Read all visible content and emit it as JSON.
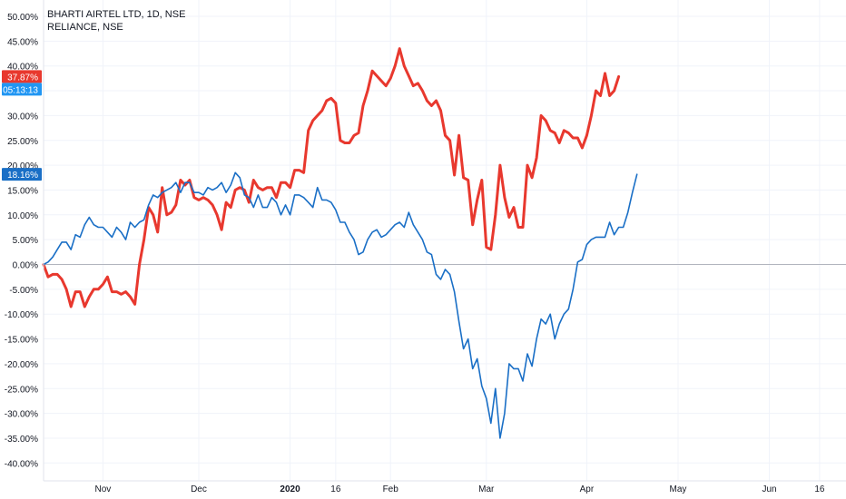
{
  "legend": {
    "line1": "BHARTI AIRTEL LTD, 1D, NSE",
    "line2": "RELIANCE, NSE"
  },
  "badges": {
    "bharti_value": "37.87%",
    "countdown": "05:13:13",
    "reliance_value": "18.16%"
  },
  "colors": {
    "bharti": "#e8382e",
    "reliance": "#1a6fc6",
    "badge_red": "#e8382e",
    "badge_blue": "#2196f3",
    "badge_dark_blue": "#1a6fc6",
    "grid": "#f0f3fa",
    "zero_line": "#b2b5be",
    "axis_text": "#131722"
  },
  "chart_data": {
    "type": "line",
    "title": "BHARTI AIRTEL LTD, 1D, NSE",
    "y_unit": "%",
    "ylim": [
      -42,
      52
    ],
    "y_ticks": [
      50,
      45,
      40,
      35,
      30,
      25,
      20,
      15,
      10,
      5,
      0,
      -5,
      -10,
      -15,
      -20,
      -25,
      -30,
      -35,
      -40
    ],
    "y_tick_labels": [
      "50.00%",
      "45.00%",
      "40.00%",
      "35.00%",
      "30.00%",
      "25.00%",
      "20.00%",
      "15.00%",
      "10.00%",
      "5.00%",
      "0.00%",
      "-5.00%",
      "-10.00%",
      "-15.00%",
      "-20.00%",
      "-25.00%",
      "-30.00%",
      "-35.00%",
      "-40.00%"
    ],
    "x_tick_labels": [
      "Nov",
      "Dec",
      "2020",
      "16",
      "Feb",
      "Mar",
      "Apr",
      "May",
      "Jun",
      "16"
    ],
    "x_tick_bold": [
      false,
      false,
      true,
      false,
      false,
      false,
      false,
      false,
      false,
      false
    ],
    "x_tick_index": [
      13,
      34,
      54,
      64,
      76,
      97,
      119,
      139,
      159,
      170
    ],
    "x_index_max": 174,
    "grid": true,
    "series": [
      {
        "name": "BHARTI AIRTEL LTD, 1D, NSE",
        "line_width": 3,
        "points": [
          [
            0,
            0
          ],
          [
            1,
            -2.5
          ],
          [
            2,
            -2.0
          ],
          [
            3,
            -2.0
          ],
          [
            4,
            -3.0
          ],
          [
            5,
            -5.0
          ],
          [
            6,
            -8.5
          ],
          [
            7,
            -5.5
          ],
          [
            8,
            -5.5
          ],
          [
            9,
            -8.5
          ],
          [
            10,
            -6.5
          ],
          [
            11,
            -5.0
          ],
          [
            12,
            -5.0
          ],
          [
            13,
            -4.0
          ],
          [
            14,
            -2.5
          ],
          [
            15,
            -5.5
          ],
          [
            16,
            -5.5
          ],
          [
            17,
            -6.0
          ],
          [
            18,
            -5.5
          ],
          [
            19,
            -6.5
          ],
          [
            20,
            -8.0
          ],
          [
            21,
            0
          ],
          [
            22,
            5.0
          ],
          [
            23,
            11.5
          ],
          [
            24,
            10.0
          ],
          [
            25,
            6.5
          ],
          [
            26,
            15.5
          ],
          [
            27,
            10.0
          ],
          [
            28,
            10.5
          ],
          [
            29,
            12.0
          ],
          [
            30,
            17.0
          ],
          [
            31,
            16.0
          ],
          [
            32,
            17.0
          ],
          [
            33,
            13.5
          ],
          [
            34,
            13.0
          ],
          [
            35,
            13.5
          ],
          [
            36,
            13.0
          ],
          [
            37,
            12.0
          ],
          [
            38,
            10.0
          ],
          [
            39,
            7.0
          ],
          [
            40,
            12.5
          ],
          [
            41,
            11.5
          ],
          [
            42,
            15.0
          ],
          [
            43,
            15.5
          ],
          [
            44,
            15.0
          ],
          [
            45,
            12.5
          ],
          [
            46,
            17.0
          ],
          [
            47,
            15.5
          ],
          [
            48,
            15.0
          ],
          [
            49,
            15.5
          ],
          [
            50,
            15.5
          ],
          [
            51,
            13.5
          ],
          [
            52,
            16.5
          ],
          [
            53,
            16.5
          ],
          [
            54,
            15.5
          ],
          [
            55,
            19.0
          ],
          [
            56,
            19.0
          ],
          [
            57,
            18.5
          ],
          [
            58,
            27.0
          ],
          [
            59,
            29.0
          ],
          [
            60,
            30.0
          ],
          [
            61,
            31.0
          ],
          [
            62,
            33.0
          ],
          [
            63,
            33.5
          ],
          [
            64,
            32.5
          ],
          [
            65,
            25.0
          ],
          [
            66,
            24.5
          ],
          [
            67,
            24.5
          ],
          [
            68,
            26.0
          ],
          [
            69,
            26.5
          ],
          [
            70,
            32.0
          ],
          [
            71,
            35.0
          ],
          [
            72,
            39.0
          ],
          [
            73,
            38.0
          ],
          [
            74,
            37.0
          ],
          [
            75,
            36.0
          ],
          [
            76,
            37.5
          ],
          [
            77,
            40.0
          ],
          [
            78,
            43.5
          ],
          [
            79,
            40.0
          ],
          [
            80,
            38.0
          ],
          [
            81,
            36.0
          ],
          [
            82,
            36.5
          ],
          [
            83,
            35.0
          ],
          [
            84,
            33.0
          ],
          [
            85,
            32.0
          ],
          [
            86,
            33.0
          ],
          [
            87,
            31.0
          ],
          [
            88,
            26.0
          ],
          [
            89,
            25.0
          ],
          [
            90,
            18.0
          ],
          [
            91,
            26.0
          ],
          [
            92,
            17.5
          ],
          [
            93,
            17.0
          ],
          [
            94,
            8.0
          ],
          [
            95,
            13.0
          ],
          [
            96,
            17.0
          ],
          [
            97,
            3.5
          ],
          [
            98,
            3.0
          ],
          [
            99,
            10.0
          ],
          [
            100,
            20.0
          ],
          [
            101,
            13.5
          ],
          [
            102,
            9.5
          ],
          [
            103,
            11.5
          ],
          [
            104,
            7.5
          ],
          [
            105,
            7.5
          ],
          [
            106,
            20.0
          ],
          [
            107,
            17.5
          ],
          [
            108,
            21.5
          ],
          [
            109,
            30.0
          ],
          [
            110,
            29.0
          ],
          [
            111,
            27.0
          ],
          [
            112,
            26.5
          ],
          [
            113,
            24.5
          ],
          [
            114,
            27.0
          ],
          [
            115,
            26.5
          ],
          [
            116,
            25.5
          ],
          [
            117,
            25.5
          ],
          [
            118,
            23.5
          ],
          [
            119,
            26.0
          ],
          [
            120,
            30.0
          ],
          [
            121,
            35.0
          ],
          [
            122,
            34.0
          ],
          [
            123,
            38.5
          ],
          [
            124,
            34.0
          ],
          [
            125,
            35.0
          ],
          [
            126,
            37.87
          ]
        ]
      },
      {
        "name": "RELIANCE, NSE",
        "line_width": 1.6,
        "points": [
          [
            0,
            0
          ],
          [
            1,
            0.5
          ],
          [
            2,
            1.5
          ],
          [
            3,
            3.0
          ],
          [
            4,
            4.5
          ],
          [
            5,
            4.5
          ],
          [
            6,
            3.0
          ],
          [
            7,
            6.0
          ],
          [
            8,
            5.5
          ],
          [
            9,
            8.0
          ],
          [
            10,
            9.5
          ],
          [
            11,
            8.0
          ],
          [
            12,
            7.5
          ],
          [
            13,
            7.5
          ],
          [
            14,
            6.5
          ],
          [
            15,
            5.5
          ],
          [
            16,
            7.5
          ],
          [
            17,
            6.5
          ],
          [
            18,
            5.0
          ],
          [
            19,
            8.5
          ],
          [
            20,
            7.5
          ],
          [
            21,
            8.5
          ],
          [
            22,
            9.0
          ],
          [
            23,
            12.0
          ],
          [
            24,
            14.0
          ],
          [
            25,
            13.5
          ],
          [
            26,
            14.5
          ],
          [
            27,
            15.0
          ],
          [
            28,
            15.5
          ],
          [
            29,
            16.5
          ],
          [
            30,
            14.5
          ],
          [
            31,
            16.5
          ],
          [
            32,
            16.5
          ],
          [
            33,
            14.5
          ],
          [
            34,
            14.5
          ],
          [
            35,
            14.0
          ],
          [
            36,
            15.5
          ],
          [
            37,
            15.0
          ],
          [
            38,
            15.5
          ],
          [
            39,
            16.5
          ],
          [
            40,
            14.5
          ],
          [
            41,
            16.0
          ],
          [
            42,
            18.5
          ],
          [
            43,
            17.5
          ],
          [
            44,
            14.0
          ],
          [
            45,
            13.5
          ],
          [
            46,
            11.5
          ],
          [
            47,
            14.0
          ],
          [
            48,
            11.5
          ],
          [
            49,
            11.5
          ],
          [
            50,
            13.5
          ],
          [
            51,
            12.5
          ],
          [
            52,
            10.0
          ],
          [
            53,
            12.0
          ],
          [
            54,
            10.0
          ],
          [
            55,
            14.0
          ],
          [
            56,
            14.0
          ],
          [
            57,
            13.5
          ],
          [
            58,
            12.5
          ],
          [
            59,
            11.5
          ],
          [
            60,
            15.5
          ],
          [
            61,
            13.0
          ],
          [
            62,
            13.0
          ],
          [
            63,
            12.5
          ],
          [
            64,
            11.0
          ],
          [
            65,
            8.5
          ],
          [
            66,
            8.5
          ],
          [
            67,
            6.5
          ],
          [
            68,
            5.0
          ],
          [
            69,
            2.0
          ],
          [
            70,
            2.5
          ],
          [
            71,
            5.0
          ],
          [
            72,
            6.5
          ],
          [
            73,
            7.0
          ],
          [
            74,
            5.5
          ],
          [
            75,
            6.0
          ],
          [
            76,
            7.0
          ],
          [
            77,
            8.0
          ],
          [
            78,
            8.5
          ],
          [
            79,
            7.5
          ],
          [
            80,
            10.5
          ],
          [
            81,
            8.0
          ],
          [
            82,
            6.5
          ],
          [
            83,
            5.0
          ],
          [
            84,
            2.5
          ],
          [
            85,
            2.0
          ],
          [
            86,
            -2.0
          ],
          [
            87,
            -3.0
          ],
          [
            88,
            -1.0
          ],
          [
            89,
            -2.0
          ],
          [
            90,
            -5.5
          ],
          [
            91,
            -11.5
          ],
          [
            92,
            -17.0
          ],
          [
            93,
            -15.0
          ],
          [
            94,
            -21.0
          ],
          [
            95,
            -19.0
          ],
          [
            96,
            -24.5
          ],
          [
            97,
            -27.0
          ],
          [
            98,
            -32.0
          ],
          [
            99,
            -25.0
          ],
          [
            100,
            -35.0
          ],
          [
            101,
            -30.0
          ],
          [
            102,
            -20.0
          ],
          [
            103,
            -21.0
          ],
          [
            104,
            -21.0
          ],
          [
            105,
            -23.5
          ],
          [
            106,
            -18.0
          ],
          [
            107,
            -20.5
          ],
          [
            108,
            -15.0
          ],
          [
            109,
            -11.0
          ],
          [
            110,
            -12.0
          ],
          [
            111,
            -10.0
          ],
          [
            112,
            -15.0
          ],
          [
            113,
            -12.0
          ],
          [
            114,
            -10.0
          ],
          [
            115,
            -9.0
          ],
          [
            116,
            -5.0
          ],
          [
            117,
            0.5
          ],
          [
            118,
            1.0
          ],
          [
            119,
            4.0
          ],
          [
            120,
            5.0
          ],
          [
            121,
            5.5
          ],
          [
            122,
            5.5
          ],
          [
            123,
            5.5
          ],
          [
            124,
            8.5
          ],
          [
            125,
            6.0
          ],
          [
            126,
            7.5
          ],
          [
            127,
            7.5
          ],
          [
            128,
            10.5
          ],
          [
            129,
            14.5
          ],
          [
            130,
            18.16
          ]
        ]
      }
    ]
  }
}
